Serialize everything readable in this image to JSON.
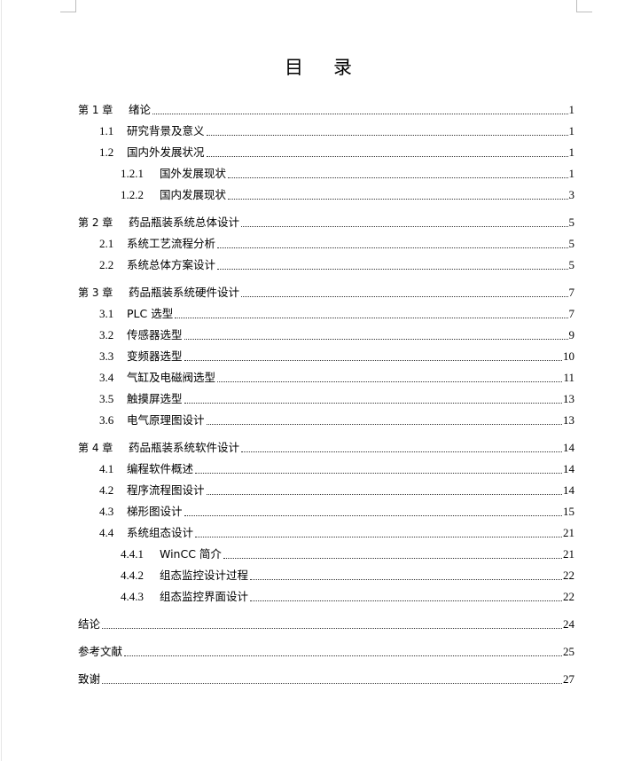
{
  "title": [
    "目",
    "录"
  ],
  "entries": [
    {
      "level": 1,
      "num": "第 1 章",
      "text": "绪论",
      "page": "1"
    },
    {
      "level": 2,
      "num": "1.1",
      "text": "研究背景及意义",
      "page": "1"
    },
    {
      "level": 2,
      "num": "1.2",
      "text": "国内外发展状况",
      "page": "1"
    },
    {
      "level": 3,
      "num": "1.2.1",
      "text": "国外发展现状",
      "page": "1"
    },
    {
      "level": 3,
      "num": "1.2.2",
      "text": "国内发展现状",
      "page": "3"
    },
    {
      "level": 1,
      "num": "第 2 章",
      "text": "药品瓶装系统总体设计",
      "page": "5"
    },
    {
      "level": 2,
      "num": "2.1",
      "text": "系统工艺流程分析",
      "page": "5"
    },
    {
      "level": 2,
      "num": "2.2",
      "text": "系统总体方案设计",
      "page": "5"
    },
    {
      "level": 1,
      "num": "第 3 章",
      "text": "药品瓶装系统硬件设计",
      "page": "7"
    },
    {
      "level": 2,
      "num": "3.1",
      "text": "PLC 选型",
      "page": "7"
    },
    {
      "level": 2,
      "num": "3.2",
      "text": "传感器选型",
      "page": "9"
    },
    {
      "level": 2,
      "num": "3.3",
      "text": "变频器选型",
      "page": "10"
    },
    {
      "level": 2,
      "num": "3.4",
      "text": "气缸及电磁阀选型",
      "page": "11"
    },
    {
      "level": 2,
      "num": "3.5",
      "text": "触摸屏选型",
      "page": "13"
    },
    {
      "level": 2,
      "num": "3.6",
      "text": "电气原理图设计",
      "page": "13"
    },
    {
      "level": 1,
      "num": "第 4 章",
      "text": "药品瓶装系统软件设计",
      "page": "14"
    },
    {
      "level": 2,
      "num": "4.1",
      "text": "编程软件概述",
      "page": "14"
    },
    {
      "level": 2,
      "num": "4.2",
      "text": "程序流程图设计",
      "page": "14"
    },
    {
      "level": 2,
      "num": "4.3",
      "text": "梯形图设计",
      "page": "15"
    },
    {
      "level": 2,
      "num": "4.4",
      "text": "系统组态设计",
      "page": "21"
    },
    {
      "level": 3,
      "num": "4.4.1",
      "text": "WinCC 简介",
      "page": "21"
    },
    {
      "level": 3,
      "num": "4.4.2",
      "text": "组态监控设计过程",
      "page": "22"
    },
    {
      "level": 3,
      "num": "4.4.3",
      "text": "组态监控界面设计",
      "page": "22"
    },
    {
      "level": 0,
      "num": "",
      "text": "结论",
      "page": "24"
    },
    {
      "level": 0,
      "num": "",
      "text": "参考文献",
      "page": "25"
    },
    {
      "level": 0,
      "num": "",
      "text": "致谢",
      "page": "27"
    }
  ]
}
